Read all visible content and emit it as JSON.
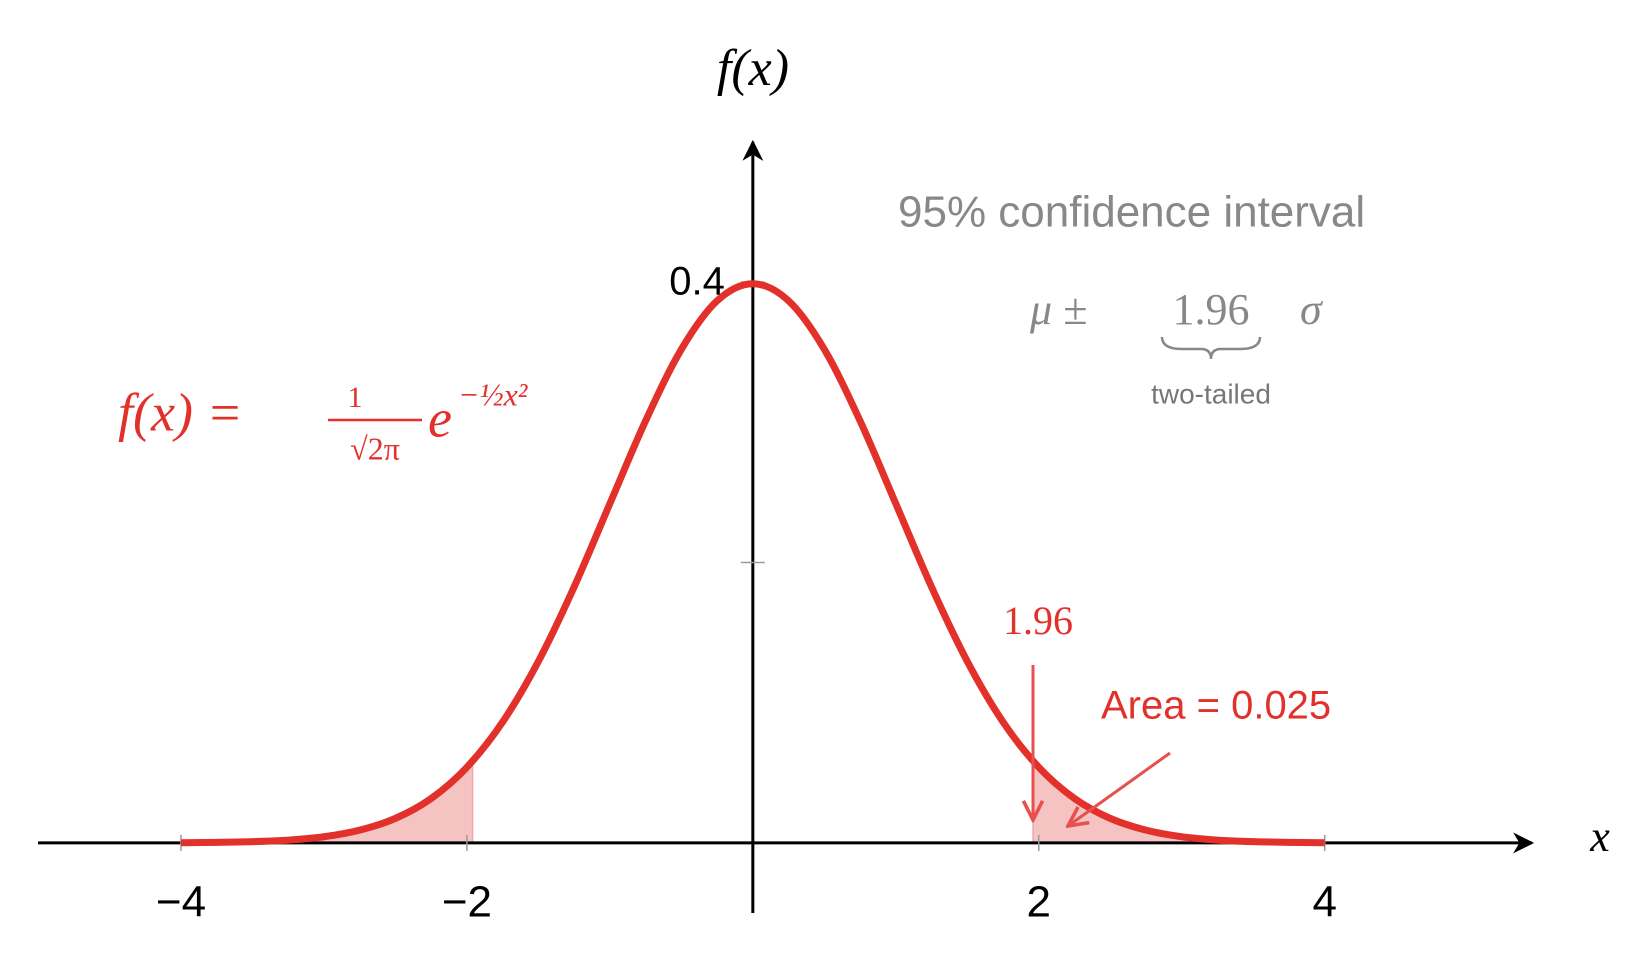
{
  "chart_data": {
    "type": "line",
    "x": [
      -4,
      -3.75,
      -3.5,
      -3.25,
      -3,
      -2.75,
      -2.5,
      -2.25,
      -2,
      -1.75,
      -1.5,
      -1.25,
      -1,
      -0.75,
      -0.5,
      -0.25,
      0,
      0.25,
      0.5,
      0.75,
      1,
      1.25,
      1.5,
      1.75,
      2,
      2.25,
      2.5,
      2.75,
      3,
      3.25,
      3.5,
      3.75,
      4
    ],
    "series": [
      {
        "color": "#e2302a",
        "values": [
          0.0001,
          0.0004,
          0.0009,
          0.002,
          0.0044,
          0.0091,
          0.0175,
          0.0317,
          0.054,
          0.0863,
          0.1295,
          0.1826,
          0.242,
          0.3011,
          0.3521,
          0.3867,
          0.3989,
          0.3867,
          0.3521,
          0.3011,
          0.242,
          0.1826,
          0.1295,
          0.0863,
          0.054,
          0.0317,
          0.0175,
          0.0091,
          0.0044,
          0.002,
          0.0009,
          0.0004,
          0.0001
        ]
      }
    ],
    "tails": [
      -1.96,
      1.96
    ],
    "tail_color": "#f6c3c3",
    "xlabel": "x",
    "ylabel": "f(x)",
    "xlim": [
      -5,
      5.45
    ],
    "ylim": [
      -0.05,
      0.5
    ],
    "xticks": [
      {
        "value": -4,
        "label": "−4"
      },
      {
        "value": -2,
        "label": "−2"
      },
      2,
      4
    ],
    "yticks": [
      0.4
    ],
    "minor_yticks": [
      0.2
    ],
    "formula": {
      "lhs": "f(x) =",
      "numerator": "1",
      "denominator": "√2π",
      "base": "e",
      "exponent": "−½x²"
    },
    "annotation_title": "95% confidence interval",
    "interval": {
      "left": "μ ±",
      "value": "1.96",
      "right": "σ",
      "brace_label": "two-tailed"
    },
    "cutoff_label": "1.96",
    "area_label": "Area = 0.025"
  }
}
